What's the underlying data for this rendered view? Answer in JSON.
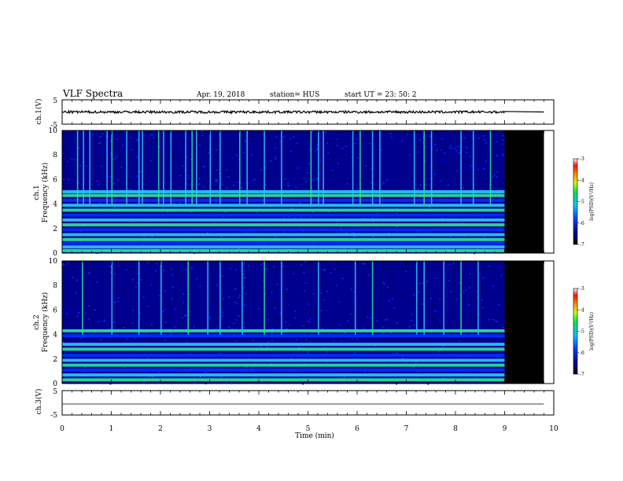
{
  "header": {
    "title": "VLF Spectra",
    "date": "Apr. 19, 2018",
    "station": "station= HUS",
    "start_ut": "start  UT  =    23: 50: 2"
  },
  "panels": {
    "ch1_waveform": {
      "ylabel": "ch.1(V)",
      "yticks": [
        "5",
        "-5"
      ]
    },
    "ch1_spectrogram": {
      "ylabel_top": "ch.1",
      "ylabel": "Frequency  (kHz)",
      "yticks": [
        "0",
        "2",
        "4",
        "6",
        "8",
        "10"
      ]
    },
    "ch2_spectrogram": {
      "ylabel_top": "ch.2",
      "ylabel": "Frequency  (kHz)",
      "yticks": [
        "0",
        "2",
        "4",
        "6",
        "8",
        "10"
      ]
    },
    "ch3_waveform": {
      "ylabel": "ch.3(V)",
      "yticks": [
        "5",
        "-5"
      ]
    }
  },
  "x_axis": {
    "label": "Time  (min)",
    "ticks": [
      "0",
      "1",
      "2",
      "3",
      "4",
      "5",
      "6",
      "7",
      "8",
      "9",
      "10"
    ]
  },
  "colorbar": {
    "label": "log(PSD)(V²/Hz)",
    "ticks": [
      "-3",
      "-4",
      "-5",
      "-6",
      "-7"
    ]
  },
  "colors": {
    "background": "#000000",
    "noise_low": "#00008f",
    "noise_mid": "#0030ff",
    "band_green": "#2ee89a",
    "band_cyan": "#30c8ff",
    "waveform": "#000000"
  },
  "chart_data": {
    "type": "heatmap",
    "x_label": "Time (min)",
    "x_range": [
      0,
      10
    ],
    "data_end_min": 9.0,
    "recording_end_min": 9.8,
    "panels": [
      {
        "name": "ch.1",
        "y_label": "Frequency (kHz)",
        "y_range": [
          0,
          10
        ],
        "color_range_log_psd": [
          -7,
          -3
        ],
        "horizontal_bands_khz": [
          0.2,
          0.5,
          0.8,
          1.1,
          1.5,
          1.9,
          2.3,
          2.7,
          3.1,
          3.5,
          3.9,
          4.3,
          4.7,
          5.0
        ],
        "sferic_times_min": [
          0.3,
          0.42,
          0.55,
          0.9,
          1.0,
          1.3,
          1.55,
          1.62,
          1.95,
          2.05,
          2.2,
          2.5,
          2.63,
          2.72,
          3.0,
          3.2,
          3.6,
          3.75,
          4.1,
          4.45,
          5.05,
          5.2,
          5.3,
          5.9,
          6.05,
          6.3,
          6.45,
          7.15,
          7.35,
          7.5,
          8.1,
          8.35,
          8.7
        ]
      },
      {
        "name": "ch.2",
        "y_label": "Frequency (kHz)",
        "y_range": [
          0,
          10
        ],
        "color_range_log_psd": [
          -7,
          -3
        ],
        "horizontal_bands_khz": [
          0.3,
          0.7,
          1.1,
          1.5,
          1.9,
          2.3,
          2.8,
          3.2,
          3.9,
          4.3
        ],
        "sferic_times_min": [
          0.4,
          1.0,
          1.55,
          2.0,
          2.55,
          2.95,
          3.2,
          3.65,
          4.1,
          4.45,
          5.2,
          5.95,
          6.3,
          7.2,
          7.35,
          7.75,
          8.1,
          8.45
        ]
      }
    ],
    "waveforms": [
      {
        "name": "ch.1(V)",
        "y_range": [
          -5,
          5
        ],
        "baseline_v": 0.0,
        "noise_amplitude_v": 0.5
      },
      {
        "name": "ch.3(V)",
        "y_range": [
          -5,
          5
        ],
        "baseline_v": -0.5,
        "noise_amplitude_v": 0.0
      }
    ]
  }
}
